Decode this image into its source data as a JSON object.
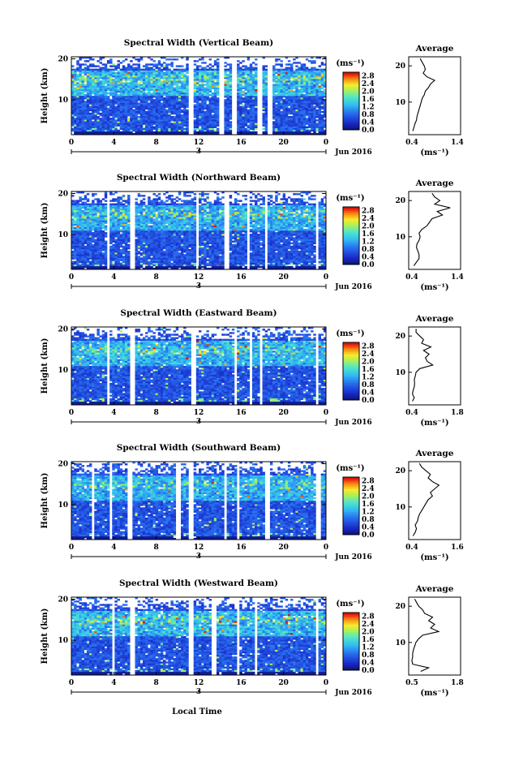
{
  "chart_data": [
    {
      "type": "heatmap",
      "title": "Spectral Width (Vertical Beam)",
      "ylabel": "Height (km)",
      "unit": "(ms⁻¹)",
      "date_label": "Jun 2016",
      "day_label": "3",
      "x_ticks": [
        "0",
        "4",
        "8",
        "12",
        "16",
        "20",
        "0"
      ],
      "y_ticks": [
        "20",
        "10"
      ],
      "colorbar_ticks": [
        "2.8",
        "2.4",
        "2.0",
        "1.6",
        "1.2",
        "0.8",
        "0.4",
        "0.0"
      ],
      "gaps": [
        [
          11.0,
          11.6
        ],
        [
          13.9,
          14.4
        ],
        [
          15.2,
          15.5
        ],
        [
          17.5,
          17.9
        ],
        [
          18.4,
          18.9
        ]
      ],
      "average_profile": {
        "title": "Average",
        "xlabel": "(ms⁻¹)",
        "x_ticks": [
          "0.4",
          "1.4"
        ],
        "xlim": [
          0.4,
          1.4
        ],
        "y_ticks": [
          "20",
          "10"
        ],
        "x": [
          0.48,
          0.5,
          0.52,
          0.55,
          0.56,
          0.58,
          0.6,
          0.62,
          0.64,
          0.66,
          0.7,
          0.72,
          0.78,
          0.82,
          0.9,
          0.75,
          0.68,
          0.72,
          0.7,
          0.66,
          0.62
        ],
        "y": [
          2,
          3,
          4,
          5,
          6,
          7,
          8,
          9,
          10,
          11,
          12,
          13,
          14,
          15,
          16,
          17,
          18,
          19,
          20,
          21,
          22
        ]
      }
    },
    {
      "type": "heatmap",
      "title": "Spectral Width (Northward Beam)",
      "ylabel": "Height (km)",
      "unit": "(ms⁻¹)",
      "date_label": "Jun 2016",
      "day_label": "3",
      "x_ticks": [
        "0",
        "4",
        "8",
        "12",
        "16",
        "20",
        "0"
      ],
      "y_ticks": [
        "20",
        "10"
      ],
      "colorbar_ticks": [
        "2.8",
        "2.4",
        "2.0",
        "1.6",
        "1.2",
        "0.8",
        "0.4",
        "0.0"
      ],
      "gaps": [
        [
          3.4,
          3.7
        ],
        [
          5.5,
          5.9
        ],
        [
          11.7,
          12.1
        ],
        [
          14.5,
          14.9
        ],
        [
          16.5,
          16.8
        ],
        [
          18.2,
          18.5
        ],
        [
          23.0,
          23.2
        ]
      ],
      "average_profile": {
        "title": "Average",
        "xlabel": "(ms⁻¹)",
        "x_ticks": [
          "0.4",
          "1.4"
        ],
        "xlim": [
          0.4,
          1.4
        ],
        "y_ticks": [
          "20",
          "10"
        ],
        "x": [
          0.5,
          0.55,
          0.6,
          0.6,
          0.58,
          0.55,
          0.56,
          0.6,
          0.62,
          0.6,
          0.65,
          0.75,
          0.8,
          0.85,
          1.05,
          0.95,
          1.2,
          0.9,
          1.0,
          0.9,
          0.85
        ],
        "y": [
          2,
          3,
          4,
          5,
          6,
          7,
          8,
          9,
          10,
          11,
          12,
          13,
          14,
          15,
          16,
          17,
          18,
          19,
          20,
          21,
          22
        ]
      }
    },
    {
      "type": "heatmap",
      "title": "Spectral Width (Eastward Beam)",
      "ylabel": "Height (km)",
      "unit": "(ms⁻¹)",
      "date_label": "Jun 2016",
      "day_label": "3",
      "x_ticks": [
        "0",
        "4",
        "8",
        "12",
        "16",
        "20",
        "0"
      ],
      "y_ticks": [
        "20",
        "10"
      ],
      "colorbar_ticks": [
        "2.8",
        "2.4",
        "2.0",
        "1.6",
        "1.2",
        "0.8",
        "0.4",
        "0.0"
      ],
      "gaps": [
        [
          3.4,
          3.7
        ],
        [
          5.6,
          6.0
        ],
        [
          11.3,
          11.8
        ],
        [
          15.3,
          15.6
        ],
        [
          16.7,
          17.1
        ],
        [
          17.7,
          18.0
        ],
        [
          23.0,
          23.3
        ]
      ],
      "average_profile": {
        "title": "Average",
        "xlabel": "(ms⁻¹)",
        "x_ticks": [
          "0.4",
          "1.8"
        ],
        "xlim": [
          0.4,
          1.8
        ],
        "y_ticks": [
          "20",
          "10"
        ],
        "x": [
          0.5,
          0.55,
          0.5,
          0.52,
          0.55,
          0.56,
          0.55,
          0.58,
          0.6,
          0.7,
          1.05,
          0.9,
          0.85,
          0.95,
          0.8,
          1.0,
          0.75,
          0.8,
          0.7,
          0.6,
          0.6
        ],
        "y": [
          2,
          3,
          4,
          5,
          6,
          7,
          8,
          9,
          10,
          11,
          12,
          13,
          14,
          15,
          16,
          17,
          18,
          19,
          20,
          21,
          22
        ]
      }
    },
    {
      "type": "heatmap",
      "title": "Spectral Width (Southward Beam)",
      "ylabel": "Height (km)",
      "unit": "(ms⁻¹)",
      "date_label": "Jun 2016",
      "day_label": "3",
      "x_ticks": [
        "0",
        "4",
        "8",
        "12",
        "16",
        "20",
        "0"
      ],
      "y_ticks": [
        "20",
        "10"
      ],
      "colorbar_ticks": [
        "2.8",
        "2.4",
        "2.0",
        "1.6",
        "1.2",
        "0.8",
        "0.4",
        "0.0"
      ],
      "gaps": [
        [
          2.0,
          2.2
        ],
        [
          3.6,
          3.9
        ],
        [
          5.4,
          5.7
        ],
        [
          9.9,
          10.2
        ],
        [
          11.0,
          11.4
        ],
        [
          14.3,
          14.7
        ],
        [
          15.5,
          15.9
        ],
        [
          18.3,
          18.6
        ],
        [
          23.1,
          23.4
        ]
      ],
      "average_profile": {
        "title": "Average",
        "xlabel": "(ms⁻¹)",
        "x_ticks": [
          "0.4",
          "1.6"
        ],
        "xlim": [
          0.4,
          1.6
        ],
        "y_ticks": [
          "20",
          "10"
        ],
        "x": [
          0.5,
          0.55,
          0.58,
          0.55,
          0.6,
          0.62,
          0.65,
          0.7,
          0.75,
          0.8,
          0.85,
          0.95,
          0.9,
          1.0,
          1.1,
          0.95,
          0.85,
          0.9,
          0.8,
          0.7,
          0.65
        ],
        "y": [
          2,
          3,
          4,
          5,
          6,
          7,
          8,
          9,
          10,
          11,
          12,
          13,
          14,
          15,
          16,
          17,
          18,
          19,
          20,
          21,
          22
        ]
      }
    },
    {
      "type": "heatmap",
      "title": "Spectral Width (Westward Beam)",
      "ylabel": "Height (km)",
      "unit": "(ms⁻¹)",
      "date_label": "Jun 2016",
      "day_label": "3",
      "x_ticks": [
        "0",
        "4",
        "8",
        "12",
        "16",
        "20",
        "0"
      ],
      "y_ticks": [
        "20",
        "10"
      ],
      "colorbar_ticks": [
        "2.8",
        "2.4",
        "2.0",
        "1.6",
        "1.2",
        "0.8",
        "0.4",
        "0.0"
      ],
      "gaps": [
        [
          3.8,
          4.1
        ],
        [
          5.6,
          6.0
        ],
        [
          11.0,
          11.4
        ],
        [
          13.3,
          13.6
        ],
        [
          15.5,
          15.8
        ],
        [
          17.2,
          17.5
        ],
        [
          23.0,
          23.3
        ]
      ],
      "average_profile": {
        "title": "Average",
        "xlabel": "(ms⁻¹)",
        "x_ticks": [
          "0.5",
          "1.8"
        ],
        "xlim": [
          0.5,
          1.8
        ],
        "y_ticks": [
          "20",
          "10"
        ],
        "x": [
          0.8,
          1.0,
          0.6,
          0.58,
          0.6,
          0.6,
          0.62,
          0.65,
          0.68,
          0.75,
          0.85,
          1.25,
          1.05,
          1.15,
          1.0,
          1.1,
          0.9,
          0.85,
          0.75,
          0.7,
          0.65
        ],
        "y": [
          2,
          3,
          4,
          5,
          6,
          7,
          8,
          9,
          10,
          11,
          12,
          13,
          14,
          15,
          16,
          17,
          18,
          19,
          20,
          21,
          22
        ]
      }
    }
  ],
  "footer": {
    "xlabel": "Local Time"
  }
}
